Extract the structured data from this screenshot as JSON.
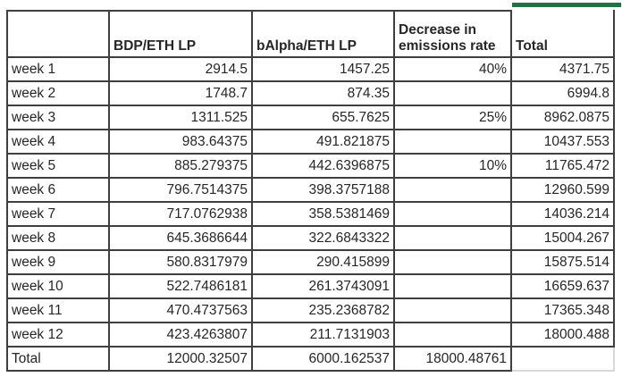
{
  "table": {
    "columns": [
      "",
      "BDP/ETH LP",
      "bAlpha/ETH LP",
      "Decrease in emissions rate",
      "Total"
    ],
    "rows": [
      {
        "cells": [
          "week 1",
          "2914.5",
          "1457.25",
          "40%",
          "4371.75"
        ]
      },
      {
        "cells": [
          "week 2",
          "1748.7",
          "874.35",
          "",
          "6994.8"
        ]
      },
      {
        "cells": [
          "week 3",
          "1311.525",
          "655.7625",
          "25%",
          "8962.0875"
        ]
      },
      {
        "cells": [
          "week 4",
          "983.64375",
          "491.821875",
          "",
          "10437.553"
        ]
      },
      {
        "cells": [
          "week 5",
          "885.279375",
          "442.6396875",
          "10%",
          "11765.472"
        ]
      },
      {
        "cells": [
          "week 6",
          "796.7514375",
          "398.3757188",
          "",
          "12960.599"
        ]
      },
      {
        "cells": [
          "week 7",
          "717.0762938",
          "358.5381469",
          "",
          "14036.214"
        ]
      },
      {
        "cells": [
          "week 8",
          "645.3686644",
          "322.6843322",
          "",
          "15004.267"
        ]
      },
      {
        "cells": [
          "week 9",
          "580.8317979",
          "290.415899",
          "",
          "15875.514"
        ]
      },
      {
        "cells": [
          "week 10",
          "522.7486181",
          "261.3743091",
          "",
          "16659.637"
        ]
      },
      {
        "cells": [
          "week 11",
          "470.4737563",
          "235.2368782",
          "",
          "17365.348"
        ]
      },
      {
        "cells": [
          "week 12",
          "423.4263807",
          "211.7131903",
          "",
          "18000.488"
        ]
      },
      {
        "cells": [
          "Total",
          "12000.32507",
          "6000.162537",
          "18000.48761",
          ""
        ]
      }
    ]
  },
  "colors": {
    "selection_green": "#217346",
    "border_dark": "#3f3f3f",
    "grid_light": "#d9d9d9",
    "text": "#262626"
  }
}
